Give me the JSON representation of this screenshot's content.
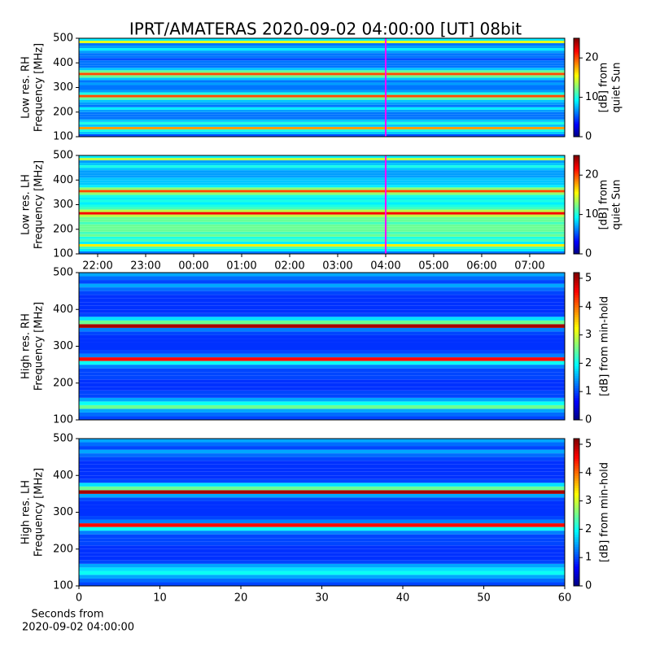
{
  "title": "IPRT/AMATERAS 2020-09-02 04:00:00 [UT]   08bit",
  "chart_data": [
    {
      "type": "heatmap",
      "colormap": "jet",
      "ylabel": [
        "Low res. RH",
        "Frequency [MHz]"
      ],
      "xlim": [
        21.61,
        31.73
      ],
      "ylim": [
        100,
        500
      ],
      "yticks": [
        100,
        200,
        300,
        400,
        500
      ],
      "vline": 28,
      "vline_color": "#ff00ff",
      "y": [
        100,
        110,
        120,
        130,
        140,
        150,
        160,
        170,
        180,
        190,
        200,
        210,
        220,
        230,
        240,
        250,
        260,
        270,
        280,
        290,
        300,
        310,
        320,
        330,
        340,
        350,
        360,
        370,
        380,
        390,
        400,
        410,
        420,
        430,
        440,
        450,
        460,
        470,
        480,
        490,
        500
      ],
      "values": [
        5,
        8,
        10,
        18,
        8,
        10,
        8,
        6,
        6,
        6,
        7,
        9,
        6,
        7,
        8,
        12,
        20,
        10,
        7,
        6,
        6,
        7,
        6,
        8,
        12,
        20,
        12,
        8,
        6,
        6,
        6,
        5,
        6,
        6,
        7,
        9,
        7,
        6,
        15,
        9
      ],
      "colorbar": {
        "label": [
          "[dB] from",
          "quiet Sun"
        ],
        "lim": [
          0,
          25
        ],
        "ticks": [
          0,
          10,
          20
        ]
      }
    },
    {
      "type": "heatmap",
      "colormap": "jet",
      "ylabel": [
        "Low res. LH",
        "Frequency [MHz]"
      ],
      "xlim": [
        21.61,
        31.73
      ],
      "ylim": [
        100,
        500
      ],
      "yticks": [
        100,
        200,
        300,
        400,
        500
      ],
      "vline": 28,
      "vline_color": "#ff00ff",
      "xticks": [
        {
          "value": 22,
          "label": "22:00"
        },
        {
          "value": 23,
          "label": "23:00"
        },
        {
          "value": 24,
          "label": "00:00"
        },
        {
          "value": 25,
          "label": "01:00"
        },
        {
          "value": 26,
          "label": "02:00"
        },
        {
          "value": 27,
          "label": "03:00"
        },
        {
          "value": 28,
          "label": "04:00"
        },
        {
          "value": 29,
          "label": "05:00"
        },
        {
          "value": 30,
          "label": "06:00"
        },
        {
          "value": 31,
          "label": "07:00"
        }
      ],
      "y": [
        100,
        110,
        120,
        130,
        140,
        150,
        160,
        170,
        180,
        190,
        200,
        210,
        220,
        230,
        240,
        250,
        260,
        270,
        280,
        290,
        300,
        310,
        320,
        330,
        340,
        350,
        360,
        370,
        380,
        390,
        400,
        410,
        420,
        430,
        440,
        450,
        460,
        470,
        480,
        490,
        500
      ],
      "values": [
        6,
        9,
        11,
        16,
        9,
        11,
        10,
        12,
        11,
        12,
        12,
        12,
        11,
        12,
        12,
        14,
        22,
        14,
        11,
        10,
        9,
        10,
        9,
        10,
        13,
        20,
        13,
        9,
        8,
        8,
        8,
        7,
        7,
        7,
        8,
        10,
        8,
        7,
        14,
        9
      ],
      "colorbar": {
        "label": [
          "[dB] from",
          "quiet Sun"
        ],
        "lim": [
          0,
          25
        ],
        "ticks": [
          0,
          10,
          20
        ]
      }
    },
    {
      "type": "heatmap",
      "colormap": "jet",
      "ylabel": [
        "High res. RH",
        "Frequency [MHz]"
      ],
      "xlim": [
        0,
        60
      ],
      "ylim": [
        100,
        500
      ],
      "yticks": [
        100,
        200,
        300,
        400,
        500
      ],
      "y": [
        100,
        110,
        120,
        130,
        140,
        150,
        160,
        170,
        180,
        190,
        200,
        210,
        220,
        230,
        240,
        250,
        260,
        270,
        280,
        290,
        300,
        310,
        320,
        330,
        340,
        350,
        360,
        370,
        380,
        390,
        400,
        410,
        420,
        430,
        440,
        450,
        460,
        470,
        480,
        490,
        500
      ],
      "values": [
        1,
        1.2,
        1.5,
        2.5,
        2,
        1.5,
        1,
        1,
        0.9,
        0.9,
        0.9,
        1,
        1,
        1,
        1.3,
        2,
        4.5,
        1.3,
        1,
        0.9,
        0.9,
        0.9,
        0.9,
        1,
        1.3,
        5,
        2.5,
        1.8,
        1,
        0.9,
        0.9,
        0.9,
        0.9,
        0.9,
        1,
        1.2,
        1.5,
        1,
        1.2,
        1.5
      ],
      "colorbar": {
        "label": [
          "[dB] from min-hold"
        ],
        "lim": [
          0,
          5.2
        ],
        "ticks": [
          0,
          1,
          2,
          3,
          4,
          5
        ]
      }
    },
    {
      "type": "heatmap",
      "colormap": "jet",
      "ylabel": [
        "High res. LH",
        "Frequency [MHz]"
      ],
      "xlim": [
        0,
        60
      ],
      "ylim": [
        100,
        500
      ],
      "yticks": [
        100,
        200,
        300,
        400,
        500
      ],
      "xticks": [
        0,
        10,
        20,
        30,
        40,
        50,
        60
      ],
      "xlabel": [
        "Seconds from",
        "2020-09-02 04:00:00"
      ],
      "y": [
        100,
        110,
        120,
        130,
        140,
        150,
        160,
        170,
        180,
        190,
        200,
        210,
        220,
        230,
        240,
        250,
        260,
        270,
        280,
        290,
        300,
        310,
        320,
        330,
        340,
        350,
        360,
        370,
        380,
        390,
        400,
        410,
        420,
        430,
        440,
        450,
        460,
        470,
        480,
        490,
        500
      ],
      "values": [
        1,
        1.2,
        1.5,
        2,
        1.8,
        1.5,
        1,
        0.9,
        0.9,
        0.9,
        0.9,
        1,
        1,
        1,
        1.3,
        2,
        4.5,
        1.3,
        1,
        0.9,
        0.9,
        0.9,
        0.9,
        1,
        1.5,
        5,
        2.5,
        1.8,
        1,
        0.9,
        0.9,
        0.9,
        0.9,
        0.9,
        1,
        1.2,
        1.5,
        1,
        1.2,
        1.5
      ],
      "colorbar": {
        "label": [
          "[dB] from min-hold"
        ],
        "lim": [
          0,
          5.2
        ],
        "ticks": [
          0,
          1,
          2,
          3,
          4,
          5
        ]
      }
    }
  ]
}
